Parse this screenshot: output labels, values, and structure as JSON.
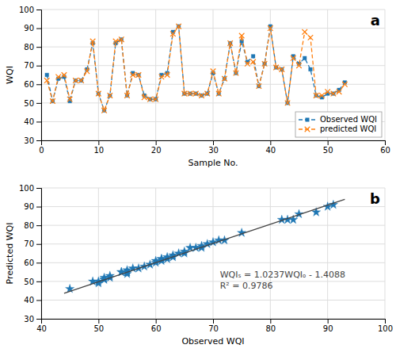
{
  "chart_data": [
    {
      "type": "line",
      "title": "a",
      "xlabel": "Sample No.",
      "ylabel": "WQI",
      "x": [
        1,
        2,
        3,
        4,
        5,
        6,
        7,
        8,
        9,
        10,
        11,
        12,
        13,
        14,
        15,
        16,
        17,
        18,
        19,
        20,
        21,
        22,
        23,
        24,
        25,
        26,
        27,
        28,
        29,
        30,
        31,
        32,
        33,
        34,
        35,
        36,
        37,
        38,
        39,
        40,
        41,
        42,
        43,
        44,
        45,
        46,
        47,
        48,
        49,
        50,
        51,
        52,
        53
      ],
      "series": [
        {
          "name": "Observed WQI",
          "line_style": "dashed",
          "marker": "square",
          "values": [
            65,
            51,
            63,
            64,
            51,
            62,
            62,
            68,
            82,
            55,
            46,
            54,
            82,
            84,
            54,
            66,
            65,
            54,
            52,
            52,
            65,
            66,
            88,
            91,
            55,
            55,
            55,
            54,
            55,
            66,
            55,
            63,
            82,
            66,
            83,
            72,
            75,
            59,
            71,
            91,
            69,
            68,
            50,
            75,
            71,
            74,
            68,
            54,
            53,
            55,
            55,
            57,
            61
          ]
        },
        {
          "name": "predicted WQI",
          "line_style": "dashed",
          "marker": "x",
          "values": [
            62,
            51,
            64,
            65,
            52,
            62,
            62,
            67,
            83,
            55,
            46,
            54,
            83,
            84,
            54,
            65,
            65,
            53,
            52,
            52,
            64,
            65,
            87,
            91,
            55,
            55,
            55,
            54,
            55,
            67,
            55,
            63,
            82,
            66,
            86,
            71,
            72,
            59,
            71,
            90,
            69,
            68,
            50,
            74,
            70,
            88,
            85,
            54,
            54,
            56,
            55,
            56,
            60
          ]
        }
      ],
      "xlim": [
        0,
        60
      ],
      "ylim": [
        30,
        100
      ],
      "xticks": [
        0,
        10,
        20,
        30,
        40,
        50,
        60
      ],
      "yticks": [
        30,
        40,
        50,
        60,
        70,
        80,
        90,
        100
      ],
      "grid": true,
      "legend": "lower right"
    },
    {
      "type": "scatter",
      "title": "b",
      "xlabel": "Observed WQI",
      "ylabel": "Predicted WQI",
      "series": [
        {
          "marker": "star",
          "x": [
            45,
            49,
            50,
            50,
            51,
            51,
            51,
            52,
            52,
            54,
            54,
            55,
            55,
            55,
            55,
            56,
            57,
            58,
            59,
            60,
            60,
            61,
            61,
            61,
            62,
            62,
            63,
            63,
            64,
            65,
            65,
            66,
            67,
            68,
            68,
            69,
            70,
            71,
            72,
            75,
            82,
            83,
            84,
            85,
            88,
            90,
            91
          ],
          "values": [
            46,
            50,
            50,
            49,
            52,
            51,
            51,
            52,
            53,
            55,
            55,
            56,
            55,
            54,
            55,
            57,
            57,
            58,
            59,
            61,
            60,
            61,
            62,
            62,
            62,
            63,
            63,
            64,
            65,
            65,
            66,
            68,
            68,
            68,
            69,
            70,
            71,
            72,
            72,
            76,
            83,
            83,
            83,
            86,
            87,
            90,
            91
          ]
        },
        {
          "type": "line",
          "line_style": "solid",
          "x": [
            44,
            93
          ],
          "values": [
            43.6,
            93.9
          ]
        }
      ],
      "annotations": [
        "WQIₛ = 1.0237WQIₒ - 1.4088",
        "R² = 0.9786"
      ],
      "xlim": [
        40,
        100
      ],
      "ylim": [
        30,
        100
      ],
      "xticks": [
        40,
        50,
        60,
        70,
        80,
        90,
        100
      ],
      "yticks": [
        30,
        40,
        50,
        60,
        70,
        80,
        90,
        100
      ],
      "grid": true
    }
  ]
}
